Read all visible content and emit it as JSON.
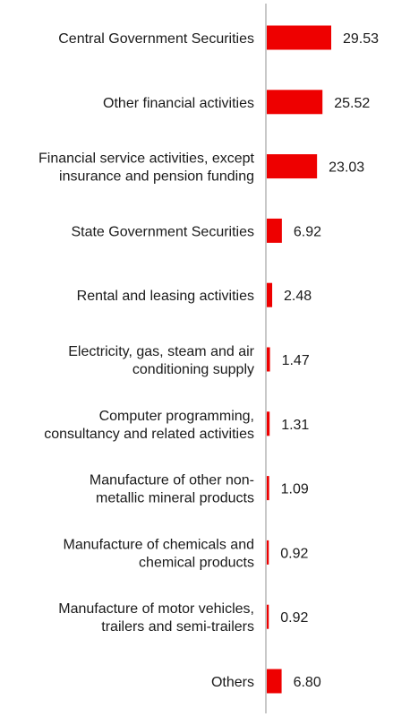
{
  "chart_data": {
    "type": "bar",
    "orientation": "horizontal",
    "categories": [
      [
        "Central Government Securities"
      ],
      [
        "Other financial activities"
      ],
      [
        "Financial service activities, except",
        "insurance and pension funding"
      ],
      [
        "State Government Securities"
      ],
      [
        "Rental and leasing activities"
      ],
      [
        "Electricity, gas, steam and air",
        "conditioning supply"
      ],
      [
        "Computer programming,",
        "consultancy and related activities"
      ],
      [
        "Manufacture of other non-",
        "metallic mineral products"
      ],
      [
        "Manufacture of chemicals and",
        "chemical products"
      ],
      [
        "Manufacture of motor vehicles,",
        "trailers and semi-trailers"
      ],
      [
        "Others"
      ]
    ],
    "values": [
      29.53,
      25.52,
      23.03,
      6.92,
      2.48,
      1.47,
      1.31,
      1.09,
      0.92,
      0.92,
      6.8
    ],
    "value_labels": [
      "29.53",
      "25.52",
      "23.03",
      "6.92",
      "2.48",
      "1.47",
      "1.31",
      "1.09",
      "0.92",
      "0.92",
      "6.80"
    ],
    "title": "",
    "xlabel": "",
    "ylabel": "",
    "xlim": [
      0,
      29.53
    ],
    "grid": false,
    "legend": "none",
    "colors": {
      "bar": "#ee0000",
      "axis": "#c8c8c8",
      "text": "#1a1a1a"
    }
  }
}
